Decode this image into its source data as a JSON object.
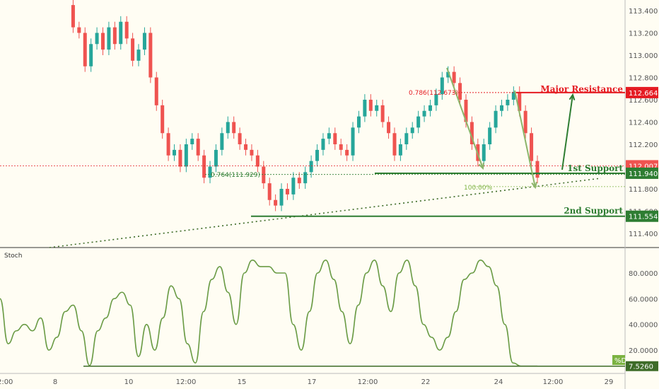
{
  "chart_data": [
    {
      "type": "candlestick",
      "title": "",
      "xlabel": "",
      "ylabel": "",
      "ylim": [
        111.2,
        113.5
      ],
      "y_ticks": [
        "113.400",
        "113.200",
        "113.000",
        "112.800",
        "112.600",
        "112.400",
        "112.200",
        "112.000",
        "111.800",
        "111.600",
        "111.400"
      ],
      "x_ticks": [
        "12:00",
        "8",
        "10",
        "12:00",
        "15",
        "17",
        "12:00",
        "22",
        "24",
        "12:00",
        "29"
      ],
      "colors": {
        "up": "#26a69a",
        "down": "#ef5350",
        "green": "#2e7d32",
        "red": "#e51c23",
        "dotted_green": "#7cb342"
      },
      "close_series": [
        113.45,
        113.25,
        113.2,
        112.9,
        113.1,
        113.2,
        113.05,
        113.25,
        113.1,
        113.3,
        113.15,
        112.95,
        113.05,
        113.2,
        112.8,
        112.55,
        112.3,
        112.1,
        112.15,
        112.0,
        112.2,
        112.25,
        112.1,
        111.9,
        112.0,
        112.15,
        112.3,
        112.4,
        112.3,
        112.2,
        112.15,
        112.1,
        112.0,
        111.85,
        111.7,
        111.65,
        111.8,
        111.75,
        111.9,
        111.85,
        111.95,
        112.05,
        112.15,
        112.25,
        112.3,
        112.2,
        112.15,
        112.1,
        112.35,
        112.45,
        112.6,
        112.5,
        112.55,
        112.4,
        112.3,
        112.1,
        112.2,
        112.3,
        112.35,
        112.45,
        112.5,
        112.55,
        112.65,
        112.8,
        112.85,
        112.75,
        112.6,
        112.4,
        112.2,
        112.05,
        112.2,
        112.35,
        112.5,
        112.55,
        112.6,
        112.67,
        112.5,
        112.3,
        112.05,
        111.9
      ],
      "annotations": [
        {
          "text": "Major Resistance",
          "value": "112.664",
          "color": "#e51c23"
        },
        {
          "text": "1st Support",
          "value": "111.940",
          "color": "#2e7d32"
        },
        {
          "text": "2nd Support",
          "value": "111.554",
          "color": "#2e7d32"
        },
        {
          "text": "0.786(112.673)",
          "color": "#e51c23"
        },
        {
          "text": "0.764(111.929)",
          "color": "#2e7d32"
        },
        {
          "text": "100.00%",
          "color": "#7cb342"
        }
      ],
      "current_price_tag": "112.007",
      "levels": {
        "major_resistance": 112.664,
        "first_support": 111.94,
        "second_support": 111.554,
        "current": 112.007,
        "fib_786": 112.673,
        "fib_764": 111.929,
        "fib_100": 111.82
      }
    },
    {
      "type": "line",
      "title": "Stoch",
      "ylim": [
        7,
        100
      ],
      "y_ticks": [
        "80.0000",
        "60.0000",
        "40.0000",
        "20.0000"
      ],
      "legend_tag": "%D",
      "last_value_tag": "7.5260",
      "values": [
        60,
        25,
        35,
        40,
        35,
        45,
        20,
        30,
        50,
        55,
        35,
        8,
        35,
        45,
        60,
        65,
        55,
        15,
        40,
        20,
        45,
        70,
        60,
        25,
        10,
        50,
        75,
        85,
        65,
        40,
        80,
        90,
        85,
        85,
        80,
        80,
        40,
        20,
        50,
        80,
        90,
        75,
        50,
        25,
        55,
        80,
        90,
        70,
        50,
        80,
        90,
        70,
        40,
        30,
        20,
        30,
        50,
        75,
        80,
        90,
        85,
        70,
        40,
        10,
        7.5,
        7.5,
        7.5
      ],
      "series": [
        {
          "name": "%D"
        }
      ]
    }
  ]
}
